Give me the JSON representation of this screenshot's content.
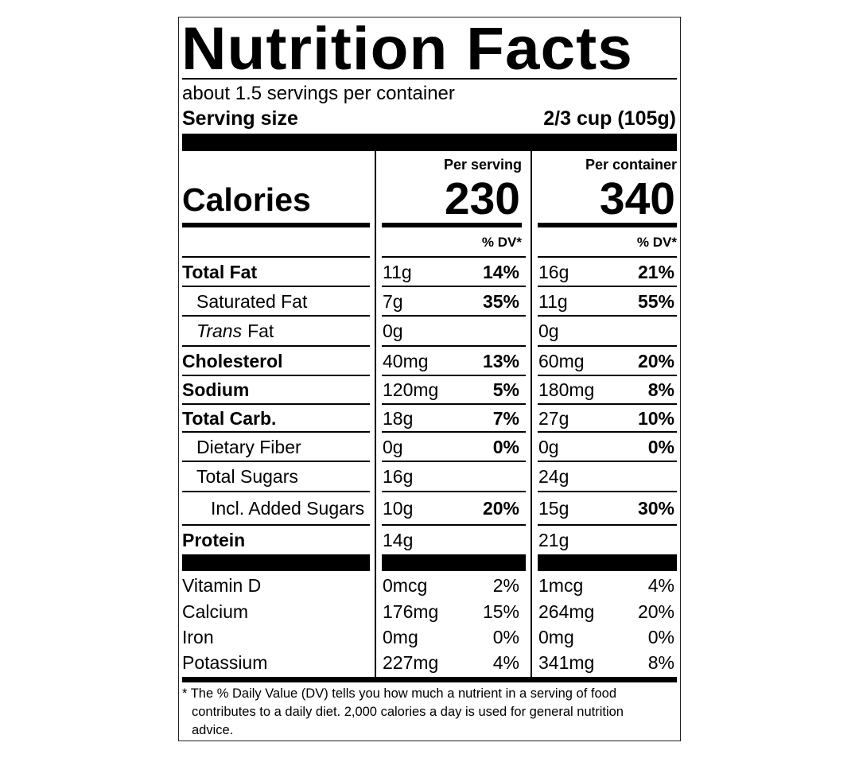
{
  "title": "Nutrition Facts",
  "servings_per_container": "about 1.5 servings per container",
  "serving_size": {
    "label": "Serving size",
    "value": "2/3 cup (105g)"
  },
  "calories_label": "Calories",
  "columns": [
    {
      "header": "Per serving",
      "calories": "230",
      "dv_header": "% DV*"
    },
    {
      "header": "Per container",
      "calories": "340",
      "dv_header": "% DV*"
    }
  ],
  "nutrients": [
    {
      "name": "Total Fat",
      "bold": true,
      "indent": 0,
      "values": [
        [
          "11g",
          "14%"
        ],
        [
          "16g",
          "21%"
        ]
      ]
    },
    {
      "name": "Saturated Fat",
      "bold": false,
      "indent": 1,
      "values": [
        [
          "7g",
          "35%"
        ],
        [
          "11g",
          "55%"
        ]
      ]
    },
    {
      "prefix": "Trans",
      "name": "Fat",
      "bold": false,
      "indent": 1,
      "values": [
        [
          "0g",
          null
        ],
        [
          "0g",
          null
        ]
      ]
    },
    {
      "name": "Cholesterol",
      "bold": true,
      "indent": 0,
      "values": [
        [
          "40mg",
          "13%"
        ],
        [
          "60mg",
          "20%"
        ]
      ]
    },
    {
      "name": "Sodium",
      "bold": true,
      "indent": 0,
      "values": [
        [
          "120mg",
          "5%"
        ],
        [
          "180mg",
          "8%"
        ]
      ]
    },
    {
      "name": "Total Carb.",
      "bold": true,
      "indent": 0,
      "values": [
        [
          "18g",
          "7%"
        ],
        [
          "27g",
          "10%"
        ]
      ]
    },
    {
      "name": "Dietary Fiber",
      "bold": false,
      "indent": 1,
      "values": [
        [
          "0g",
          "0%"
        ],
        [
          "0g",
          "0%"
        ]
      ]
    },
    {
      "name": "Total Sugars",
      "bold": false,
      "indent": 1,
      "values": [
        [
          "16g",
          null
        ],
        [
          "24g",
          null
        ]
      ]
    },
    {
      "name": "Incl. Added Sugars",
      "bold": false,
      "indent": 2,
      "values": [
        [
          "10g",
          "20%"
        ],
        [
          "15g",
          "30%"
        ]
      ]
    },
    {
      "name": "Protein",
      "bold": true,
      "indent": 0,
      "values": [
        [
          "14g",
          null
        ],
        [
          "21g",
          null
        ]
      ]
    }
  ],
  "vitamins": [
    {
      "name": "Vitamin D",
      "values": [
        [
          "0mcg",
          "2%"
        ],
        [
          "1mcg",
          "4%"
        ]
      ]
    },
    {
      "name": "Calcium",
      "values": [
        [
          "176mg",
          "15%"
        ],
        [
          "264mg",
          "20%"
        ]
      ]
    },
    {
      "name": "Iron",
      "values": [
        [
          "0mg",
          "0%"
        ],
        [
          "0mg",
          "0%"
        ]
      ]
    },
    {
      "name": "Potassium",
      "values": [
        [
          "227mg",
          "4%"
        ],
        [
          "341mg",
          "8%"
        ]
      ]
    }
  ],
  "footnote": [
    "* The % Daily Value (DV) tells you how much a nutrient in a serving of food",
    "contributes to a daily diet. 2,000 calories a day is used for general nutrition",
    "advice."
  ]
}
